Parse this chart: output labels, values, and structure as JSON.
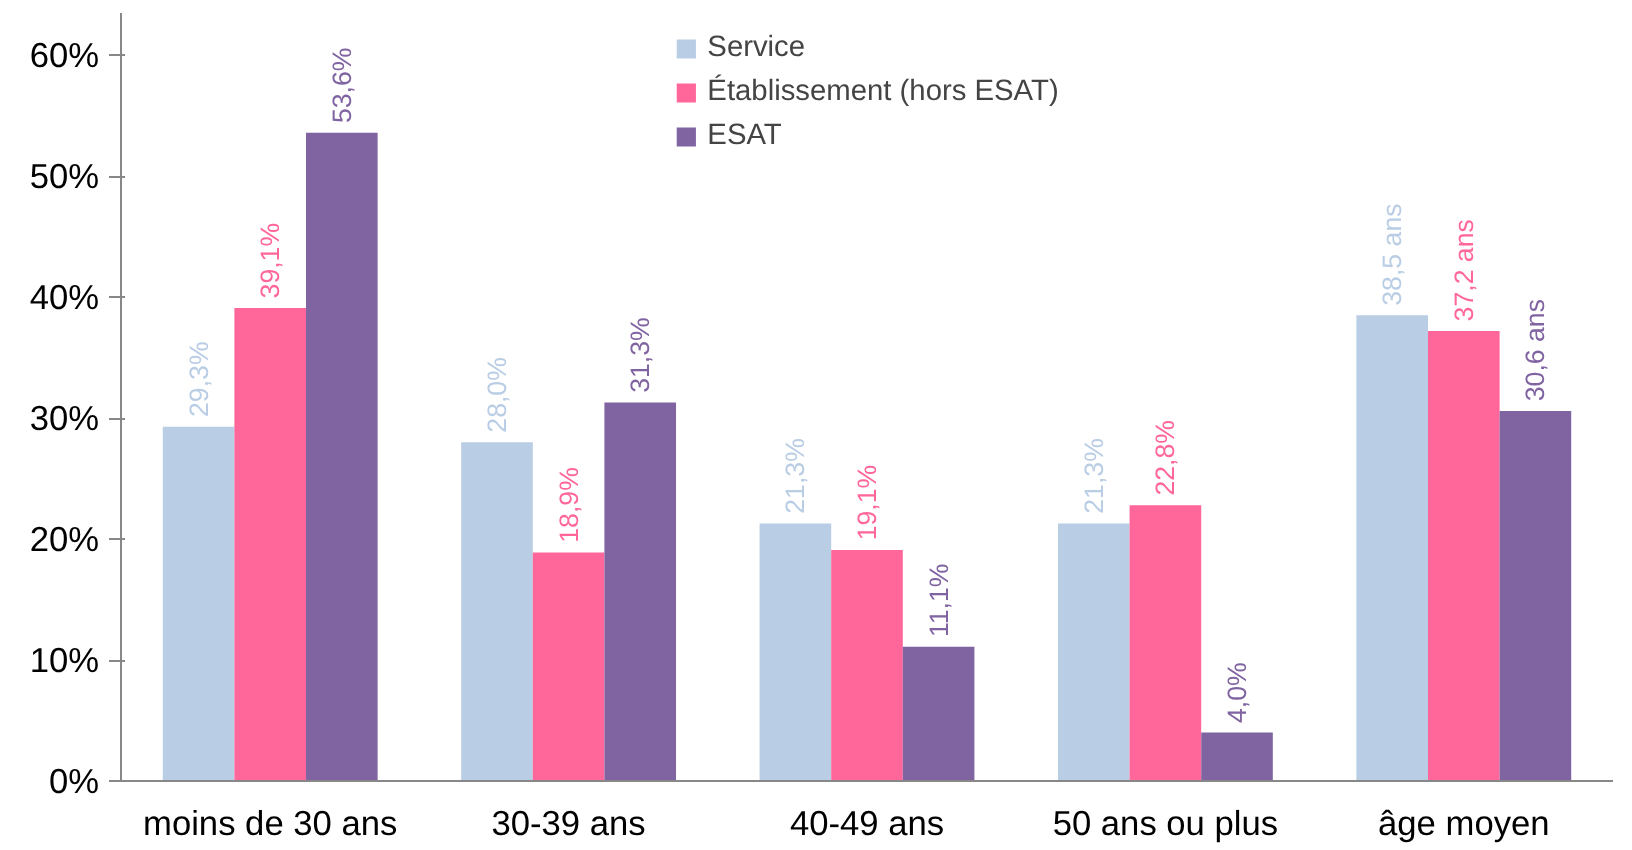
{
  "chart_data": {
    "type": "bar",
    "categories": [
      "moins de 30 ans",
      "30-39 ans",
      "40-49 ans",
      "50 ans ou plus",
      "âge moyen"
    ],
    "series": [
      {
        "name": "Service",
        "color": "#b9cde5",
        "values": [
          29.3,
          28.0,
          21.3,
          21.3,
          38.5
        ],
        "value_labels": [
          "29,3%",
          "28,0%",
          "21,3%",
          "21,3%",
          "38,5 ans"
        ]
      },
      {
        "name": "Établissement (hors ESAT)",
        "color": "#ff6699",
        "values": [
          39.1,
          18.9,
          19.1,
          22.8,
          37.2
        ],
        "value_labels": [
          "39,1%",
          "18,9%",
          "19,1%",
          "22,8%",
          "37,2 ans"
        ]
      },
      {
        "name": "ESAT",
        "color": "#8064a2",
        "values": [
          53.6,
          31.3,
          11.1,
          4.0,
          30.6
        ],
        "value_labels": [
          "53,6%",
          "31,3%",
          "11,1%",
          "4,0%",
          "30,6 ans"
        ]
      }
    ],
    "ylim": [
      0,
      63.5
    ],
    "yticks": [
      {
        "value": 0,
        "label": "0%"
      },
      {
        "value": 10,
        "label": "10%"
      },
      {
        "value": 20,
        "label": "20%"
      },
      {
        "value": 30,
        "label": "30%"
      },
      {
        "value": 40,
        "label": "40%"
      },
      {
        "value": 50,
        "label": "50%"
      },
      {
        "value": 60,
        "label": "60%"
      }
    ],
    "grid": false,
    "legend": "top"
  }
}
